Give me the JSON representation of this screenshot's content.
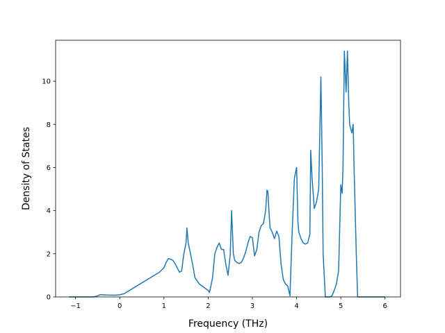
{
  "chart_data": {
    "type": "line",
    "title": "",
    "xlabel": "Frequency (THz)",
    "ylabel": "Density of States",
    "xlim": [
      -1.45,
      6.35
    ],
    "ylim": [
      0,
      11.9
    ],
    "xticks": [
      -1,
      0,
      1,
      2,
      3,
      4,
      5,
      6
    ],
    "yticks": [
      0,
      2,
      4,
      6,
      8,
      10
    ],
    "grid": false,
    "legend": "none",
    "line_color": "#1f77b4",
    "series": [
      {
        "x": [
          -1.15,
          -1.0,
          -0.6,
          -0.5,
          -0.45,
          -0.4,
          -0.3,
          -0.1,
          0.0,
          0.1,
          0.3,
          0.5,
          0.7,
          0.9,
          1.0,
          1.05,
          1.1,
          1.15,
          1.2,
          1.25,
          1.3,
          1.35,
          1.4,
          1.45,
          1.5,
          1.52,
          1.55,
          1.6,
          1.65,
          1.7,
          1.8,
          1.9,
          2.0,
          2.03,
          2.06,
          2.1,
          2.15,
          2.2,
          2.25,
          2.3,
          2.35,
          2.4,
          2.45,
          2.5,
          2.53,
          2.57,
          2.6,
          2.65,
          2.7,
          2.75,
          2.8,
          2.85,
          2.9,
          2.95,
          3.0,
          3.05,
          3.1,
          3.15,
          3.2,
          3.25,
          3.3,
          3.33,
          3.35,
          3.38,
          3.4,
          3.45,
          3.5,
          3.55,
          3.6,
          3.65,
          3.7,
          3.75,
          3.8,
          3.85,
          3.9,
          3.95,
          4.0,
          4.03,
          4.05,
          4.1,
          4.15,
          4.2,
          4.25,
          4.3,
          4.32,
          4.35,
          4.4,
          4.45,
          4.5,
          4.55,
          4.58,
          4.6,
          4.65,
          4.7,
          4.75,
          4.8,
          4.85,
          4.9,
          4.95,
          5.0,
          5.03,
          5.05,
          5.08,
          5.12,
          5.15,
          5.18,
          5.2,
          5.25,
          5.28,
          5.3,
          5.35,
          5.38,
          5.4,
          5.5,
          5.7,
          6.0
        ],
        "y": [
          0.0,
          0.0,
          0.0,
          0.05,
          0.1,
          0.1,
          0.09,
          0.08,
          0.1,
          0.15,
          0.4,
          0.65,
          0.9,
          1.15,
          1.35,
          1.6,
          1.78,
          1.75,
          1.7,
          1.55,
          1.35,
          1.15,
          1.2,
          2.0,
          2.5,
          3.2,
          2.5,
          2.0,
          1.5,
          0.9,
          0.6,
          0.45,
          0.3,
          0.2,
          0.5,
          0.9,
          2.0,
          2.3,
          2.5,
          2.2,
          2.2,
          1.5,
          1.0,
          2.0,
          4.0,
          2.0,
          1.7,
          1.6,
          1.55,
          1.6,
          1.8,
          2.1,
          2.5,
          2.8,
          2.75,
          1.9,
          2.2,
          3.0,
          3.3,
          3.4,
          4.0,
          4.95,
          4.9,
          3.8,
          3.2,
          3.0,
          2.7,
          3.05,
          2.8,
          1.5,
          0.8,
          0.6,
          0.5,
          0.05,
          3.0,
          5.5,
          6.0,
          3.5,
          3.0,
          2.7,
          2.5,
          2.45,
          2.5,
          2.9,
          6.8,
          5.5,
          4.1,
          4.4,
          5.0,
          10.2,
          6.0,
          2.0,
          0.0,
          0.0,
          0.0,
          0.05,
          0.3,
          0.6,
          1.2,
          5.2,
          4.8,
          6.0,
          11.4,
          9.5,
          11.4,
          9.0,
          8.0,
          7.6,
          8.0,
          6.0,
          2.0,
          0.0,
          0.0,
          0.0,
          0.0,
          0.0
        ]
      }
    ]
  }
}
